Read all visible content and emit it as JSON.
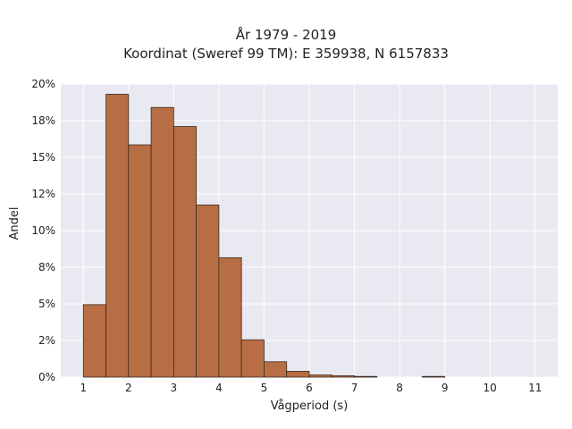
{
  "chart_data": {
    "type": "bar",
    "title": "År 1979 - 2019",
    "subtitle": "Koordinat (Sweref 99 TM): E 359938, N 6157833",
    "xlabel": "Vågperiod (s)",
    "ylabel": "Andel",
    "xlim": [
      0.5,
      11.5
    ],
    "ylim": [
      0,
      0.2
    ],
    "x_ticks": [
      1,
      2,
      3,
      4,
      5,
      6,
      7,
      8,
      9,
      10,
      11
    ],
    "x_tick_labels": [
      "1",
      "2",
      "3",
      "4",
      "5",
      "6",
      "7",
      "8",
      "9",
      "10",
      "11"
    ],
    "y_ticks": [
      0,
      0.025,
      0.05,
      0.075,
      0.1,
      0.125,
      0.15,
      0.175,
      0.2
    ],
    "y_tick_labels": [
      "0%",
      "2%",
      "5%",
      "8%",
      "10%",
      "12%",
      "15%",
      "18%",
      "20%"
    ],
    "bin_width": 0.5,
    "bin_starts": [
      1.0,
      1.5,
      2.0,
      2.5,
      3.0,
      3.5,
      4.0,
      4.5,
      5.0,
      5.5,
      6.0,
      6.5,
      7.0,
      8.5
    ],
    "values": [
      0.0495,
      0.193,
      0.1585,
      0.184,
      0.171,
      0.1175,
      0.0815,
      0.0255,
      0.0105,
      0.004,
      0.0015,
      0.001,
      0.0005,
      0.0005
    ],
    "grid": true,
    "colors": {
      "bar_fill": "#b86e45",
      "bar_edge": "#3a2a20",
      "plot_background": "#e9e9f1",
      "grid": "#ffffff"
    }
  }
}
